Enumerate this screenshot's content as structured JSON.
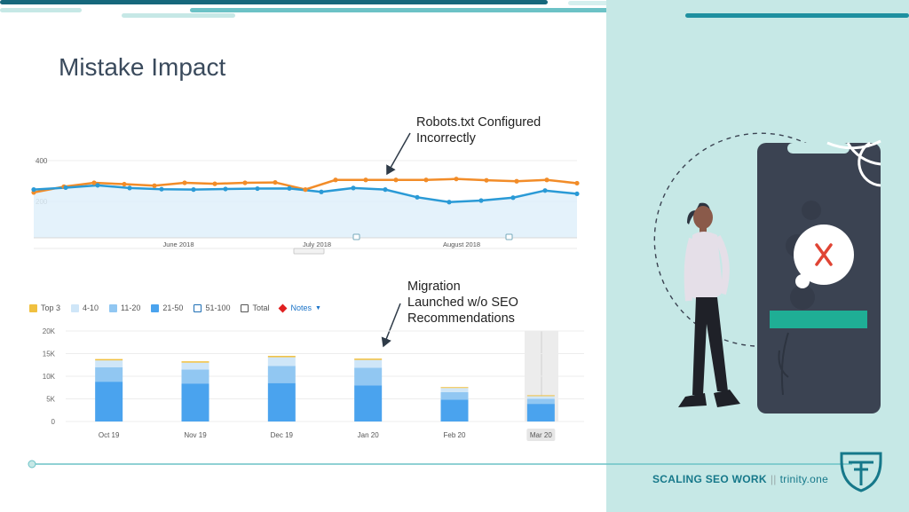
{
  "slide": {
    "title": "Mistake Impact",
    "annotation_top": [
      "Robots.txt Configured",
      "Incorrectly"
    ],
    "annotation_bottom": [
      "Migration",
      "Launched w/o SEO",
      "Recommendations"
    ]
  },
  "footer": {
    "brand": "SCALING SEO WORK",
    "separator": "||",
    "domain": "trinity.one"
  },
  "colors": {
    "orange": "#f28c28",
    "blue": "#2a9ad6",
    "teal_panel": "#c6e8e6",
    "dark_teal": "#16788a",
    "phone": "#3b4352",
    "bar_dark": "#4aa3ee",
    "bar_mid": "#91c7f2",
    "bar_light": "#cfe6f8",
    "bar_top": "#f0c040"
  },
  "illustration": {
    "error_icon": "x-mark-icon",
    "figure": "person-standing-illustration"
  },
  "chart_data": [
    {
      "type": "line",
      "title": "",
      "yticks": [
        "400",
        "200"
      ],
      "ylim": [
        0,
        400
      ],
      "x_tick_labels": [
        "June 2018",
        "July 2018",
        "August 2018"
      ],
      "series": [
        {
          "name": "",
          "color": "orange",
          "values": [
            235,
            265,
            285,
            278,
            270,
            285,
            280,
            285,
            287,
            250,
            300,
            300,
            300,
            300,
            305,
            298,
            293,
            300,
            283
          ]
        },
        {
          "name": "",
          "color": "blue",
          "values": [
            250,
            260,
            272,
            258,
            252,
            250,
            253,
            255,
            256,
            238,
            258,
            250,
            210,
            185,
            193,
            208,
            245,
            228
          ]
        }
      ]
    },
    {
      "type": "bar",
      "stacked": true,
      "legend": [
        "Top 3",
        "4-10",
        "11-20",
        "21-50",
        "51-100",
        "Total",
        "Notes"
      ],
      "legend_placement": "top-left",
      "categories": [
        "Oct 19",
        "Nov 19",
        "Dec 19",
        "Jan 20",
        "Feb 20",
        "Mar 20"
      ],
      "yticks": [
        "20K",
        "15K",
        "10K",
        "5K",
        "0"
      ],
      "ylim": [
        0,
        20000
      ],
      "series": [
        {
          "name": "21-50",
          "values": [
            8800,
            8400,
            8500,
            8000,
            4800,
            3900
          ]
        },
        {
          "name": "11-20",
          "values": [
            3200,
            3100,
            3800,
            3900,
            1700,
            1100
          ]
        },
        {
          "name": "4-10",
          "values": [
            1500,
            1500,
            1900,
            1700,
            900,
            600
          ]
        },
        {
          "name": "Top 3",
          "values": [
            300,
            300,
            300,
            300,
            200,
            200
          ]
        }
      ],
      "highlighted_category": "Mar 20"
    }
  ]
}
